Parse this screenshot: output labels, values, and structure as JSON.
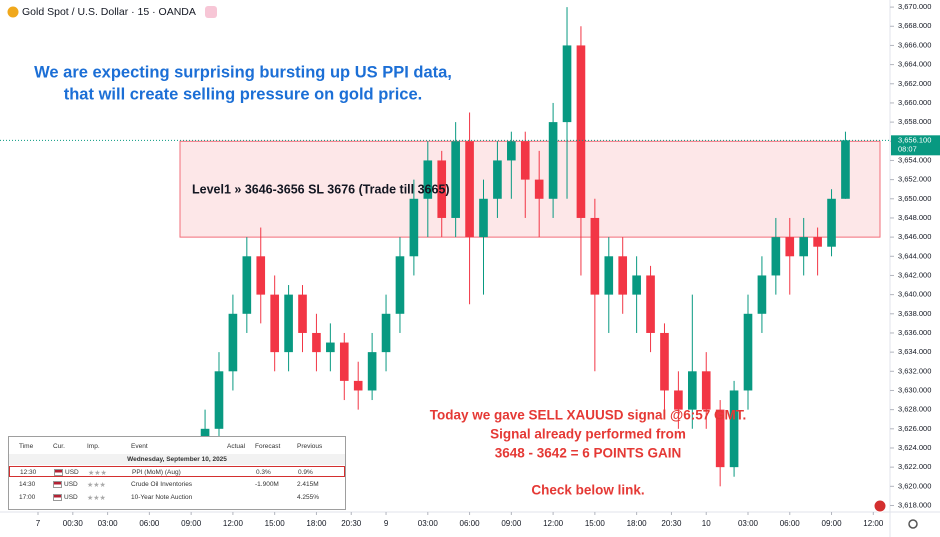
{
  "chart_data": {
    "type": "candlestick",
    "title": "Gold Spot / U.S. Dollar · 15 · OANDA",
    "x": [
      12,
      13,
      14,
      15,
      16,
      17,
      18,
      19,
      20,
      21,
      22,
      23,
      24,
      25,
      26,
      27,
      28,
      29,
      30,
      31,
      32,
      33,
      34,
      35,
      36,
      37,
      38,
      39,
      40,
      41,
      42,
      43,
      44,
      45,
      46,
      47,
      48,
      49,
      50,
      51,
      52,
      53,
      54,
      55,
      56,
      57,
      58
    ],
    "open": [
      3620,
      3626,
      3632,
      3638,
      3644,
      3640,
      3634,
      3640,
      3636,
      3634,
      3635,
      3631,
      3630,
      3634,
      3638,
      3644,
      3650,
      3654,
      3648,
      3656,
      3646,
      3650,
      3654,
      3656,
      3652,
      3650,
      3658,
      3666,
      3648,
      3640,
      3644,
      3640,
      3642,
      3636,
      3630,
      3628,
      3632,
      3628,
      3622,
      3630,
      3638,
      3642,
      3646,
      3644,
      3646,
      3645,
      3650
    ],
    "high": [
      3628,
      3634,
      3640,
      3646,
      3647,
      3642,
      3641,
      3641,
      3638,
      3637,
      3636,
      3633,
      3636,
      3640,
      3646,
      3652,
      3656,
      3655,
      3658,
      3659,
      3652,
      3656,
      3657,
      3657,
      3655,
      3660,
      3670,
      3668,
      3650,
      3646,
      3646,
      3644,
      3643,
      3637,
      3632,
      3640,
      3634,
      3629,
      3631,
      3640,
      3644,
      3648,
      3648,
      3648,
      3647,
      3651,
      3657
    ],
    "low": [
      3618,
      3624,
      3630,
      3636,
      3637,
      3632,
      3632,
      3634,
      3632,
      3632,
      3629,
      3628,
      3629,
      3632,
      3636,
      3642,
      3646,
      3646,
      3646,
      3639,
      3640,
      3648,
      3650,
      3648,
      3646,
      3648,
      3650,
      3642,
      3632,
      3636,
      3638,
      3636,
      3634,
      3628,
      3626,
      3626,
      3626,
      3620,
      3621,
      3628,
      3636,
      3640,
      3640,
      3642,
      3642,
      3644,
      3650
    ],
    "close": [
      3626,
      3632,
      3638,
      3644,
      3640,
      3634,
      3640,
      3636,
      3634,
      3635,
      3631,
      3630,
      3634,
      3638,
      3644,
      3650,
      3654,
      3648,
      3656,
      3646,
      3650,
      3654,
      3656,
      3652,
      3650,
      3658,
      3666,
      3648,
      3640,
      3644,
      3640,
      3642,
      3636,
      3630,
      3628,
      3632,
      3628,
      3622,
      3630,
      3638,
      3642,
      3646,
      3644,
      3646,
      3645,
      3650,
      3656.1
    ],
    "up_color": "#089981",
    "down_color": "#f23645",
    "xlim": [
      -2.73,
      61.2
    ],
    "xticks": [
      {
        "value": 0,
        "label": "7"
      },
      {
        "value": 2.5,
        "label": "00:30"
      },
      {
        "value": 5,
        "label": "03:00"
      },
      {
        "value": 8,
        "label": "06:00"
      },
      {
        "value": 11,
        "label": "09:00"
      },
      {
        "value": 14,
        "label": "12:00"
      },
      {
        "value": 17,
        "label": "15:00"
      },
      {
        "value": 20,
        "label": "18:00"
      },
      {
        "value": 22.5,
        "label": "20:30"
      },
      {
        "value": 25,
        "label": "9"
      },
      {
        "value": 28,
        "label": "03:00"
      },
      {
        "value": 31,
        "label": "06:00"
      },
      {
        "value": 34,
        "label": "09:00"
      },
      {
        "value": 37,
        "label": "12:00"
      },
      {
        "value": 40,
        "label": "15:00"
      },
      {
        "value": 43,
        "label": "18:00"
      },
      {
        "value": 45.5,
        "label": "20:30"
      },
      {
        "value": 48,
        "label": "10"
      },
      {
        "value": 51,
        "label": "03:00"
      },
      {
        "value": 54,
        "label": "06:00"
      },
      {
        "value": 57,
        "label": "09:00"
      },
      {
        "value": 60,
        "label": "12:00"
      }
    ],
    "ylim": [
      3617.32,
      3670.74
    ],
    "yticks": [
      {
        "value": 3618,
        "label": "3,618.000"
      },
      {
        "value": 3620,
        "label": "3,620.000"
      },
      {
        "value": 3622,
        "label": "3,622.000"
      },
      {
        "value": 3624,
        "label": "3,624.000"
      },
      {
        "value": 3626,
        "label": "3,626.000"
      },
      {
        "value": 3628,
        "label": "3,628.000"
      },
      {
        "value": 3630,
        "label": "3,630.000"
      },
      {
        "value": 3632,
        "label": "3,632.000"
      },
      {
        "value": 3634,
        "label": "3,634.000"
      },
      {
        "value": 3636,
        "label": "3,636.000"
      },
      {
        "value": 3638,
        "label": "3,638.000"
      },
      {
        "value": 3640,
        "label": "3,640.000"
      },
      {
        "value": 3642,
        "label": "3,642.000"
      },
      {
        "value": 3644,
        "label": "3,644.000"
      },
      {
        "value": 3646,
        "label": "3,646.000"
      },
      {
        "value": 3648,
        "label": "3,648.000"
      },
      {
        "value": 3650,
        "label": "3,650.000"
      },
      {
        "value": 3652,
        "label": "3,652.000"
      },
      {
        "value": 3654,
        "label": "3,654.000"
      },
      {
        "value": 3656,
        "label": "3,656.000"
      },
      {
        "value": 3658,
        "label": "3,658.000"
      },
      {
        "value": 3660,
        "label": "3,660.000"
      },
      {
        "value": 3662,
        "label": "3,662.000"
      },
      {
        "value": 3664,
        "label": "3,664.000"
      },
      {
        "value": 3666,
        "label": "3,666.000"
      },
      {
        "value": 3668,
        "label": "3,668.000"
      },
      {
        "value": 3670,
        "label": "3,670.000"
      }
    ],
    "grid": false,
    "last_price": {
      "value": 3656.1,
      "label": "3,656.100"
    },
    "countdown": "08:07",
    "zone": {
      "low": 3646,
      "high": 3656,
      "label": "Level1 » 3646-3656 SL 3676 (Trade till 3665)"
    },
    "headline": [
      "We are expecting surprising bursting up US PPI data,",
      "that will create selling pressure on gold price."
    ],
    "signal_note": [
      "Today we gave SELL XAUUSD signal @6:57 GMT.",
      "Signal already performed from",
      "3648 - 3642 = 6 POINTS GAIN",
      "Check below link."
    ]
  },
  "calendar": {
    "columns": [
      "Time",
      "Cur.",
      "Imp.",
      "Event",
      "Actual",
      "Forecast",
      "Previous"
    ],
    "date": "Wednesday, September 10, 2025",
    "rows": [
      {
        "time": "12:30",
        "currency": "USD",
        "event": "PPI (MoM) (Aug)",
        "forecast": "0.3%",
        "previous": "0.9%"
      },
      {
        "time": "14:30",
        "currency": "USD",
        "event": "Crude Oil Inventories",
        "forecast": "-1.900M",
        "previous": "2.415M"
      },
      {
        "time": "17:00",
        "currency": "USD",
        "event": "10-Year Note Auction",
        "previous": "4.255%"
      }
    ]
  }
}
